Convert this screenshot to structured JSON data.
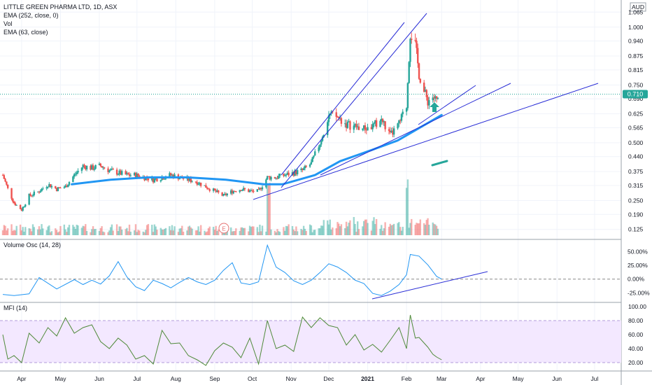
{
  "header": {
    "symbol_title": "LITTLE GREEN PHARMA LTD, 1D, ASX",
    "indicators": [
      "EMA (252, close, 0)",
      "Vol",
      "EMA (63, close)"
    ],
    "currency": "AUD",
    "last_price": "0.710"
  },
  "colors": {
    "up": "#26a69a",
    "down": "#ef5350",
    "ema": "#2196f3",
    "trendline": "#2a2ed6",
    "price_tag": "#26a69a",
    "mfi_line": "#4f8a3a",
    "mfi_band": "#f3e8ff",
    "osc_line": "#2196f3",
    "arrow": "#26a69a"
  },
  "earnings_marker": "E",
  "panes": {
    "volume_osc": {
      "title": "Volume Osc (14, 28)",
      "ticks": [
        "50.00%",
        "25.00%",
        "0.00%",
        "-25.00%"
      ]
    },
    "mfi": {
      "title": "MFI (14)",
      "ticks": [
        "100.00",
        "80.00",
        "60.00",
        "40.00",
        "20.00"
      ]
    }
  },
  "time_axis": [
    "Apr",
    "May",
    "Jun",
    "Jul",
    "Aug",
    "Sep",
    "Oct",
    "Nov",
    "Dec",
    "2021",
    "Feb",
    "Mar",
    "Apr",
    "May",
    "Jun",
    "Jul"
  ],
  "chart_data": {
    "type": "candlestick",
    "price_axis": [
      "1.065",
      "1.000",
      "0.940",
      "0.875",
      "0.815",
      "0.750",
      "0.690",
      "0.625",
      "0.565",
      "0.500",
      "0.440",
      "0.375",
      "0.315",
      "0.250",
      "0.190",
      "0.125"
    ],
    "ylim": [
      0.1,
      1.075
    ],
    "x_range": [
      "2020-03-16",
      "2021-07-20"
    ],
    "close_series": [
      [
        "2020-03-16",
        0.36
      ],
      [
        "2020-03-20",
        0.3
      ],
      [
        "2020-03-25",
        0.24
      ],
      [
        "2020-03-31",
        0.21
      ],
      [
        "2020-04-06",
        0.27
      ],
      [
        "2020-04-14",
        0.29
      ],
      [
        "2020-04-21",
        0.32
      ],
      [
        "2020-04-28",
        0.3
      ],
      [
        "2020-05-05",
        0.31
      ],
      [
        "2020-05-12",
        0.36
      ],
      [
        "2020-05-19",
        0.4
      ],
      [
        "2020-05-26",
        0.39
      ],
      [
        "2020-06-02",
        0.4
      ],
      [
        "2020-06-09",
        0.38
      ],
      [
        "2020-06-16",
        0.37
      ],
      [
        "2020-06-23",
        0.36
      ],
      [
        "2020-06-30",
        0.36
      ],
      [
        "2020-07-07",
        0.35
      ],
      [
        "2020-07-14",
        0.34
      ],
      [
        "2020-07-21",
        0.35
      ],
      [
        "2020-07-28",
        0.36
      ],
      [
        "2020-08-04",
        0.35
      ],
      [
        "2020-08-11",
        0.34
      ],
      [
        "2020-08-18",
        0.33
      ],
      [
        "2020-08-25",
        0.31
      ],
      [
        "2020-09-01",
        0.29
      ],
      [
        "2020-09-08",
        0.27
      ],
      [
        "2020-09-15",
        0.29
      ],
      [
        "2020-09-22",
        0.3
      ],
      [
        "2020-09-29",
        0.29
      ],
      [
        "2020-10-06",
        0.29
      ],
      [
        "2020-10-13",
        0.35
      ],
      [
        "2020-10-20",
        0.35
      ],
      [
        "2020-10-27",
        0.36
      ],
      [
        "2020-11-03",
        0.37
      ],
      [
        "2020-11-10",
        0.38
      ],
      [
        "2020-11-17",
        0.41
      ],
      [
        "2020-11-24",
        0.5
      ],
      [
        "2020-12-01",
        0.62
      ],
      [
        "2020-12-08",
        0.61
      ],
      [
        "2020-12-15",
        0.58
      ],
      [
        "2020-12-22",
        0.57
      ],
      [
        "2020-12-29",
        0.56
      ],
      [
        "2021-01-05",
        0.57
      ],
      [
        "2021-01-12",
        0.6
      ],
      [
        "2021-01-19",
        0.53
      ],
      [
        "2021-01-26",
        0.58
      ],
      [
        "2021-02-01",
        0.66
      ],
      [
        "2021-02-04",
        0.98
      ],
      [
        "2021-02-08",
        0.92
      ],
      [
        "2021-02-11",
        0.8
      ],
      [
        "2021-02-15",
        0.72
      ],
      [
        "2021-02-18",
        0.68
      ],
      [
        "2021-02-22",
        0.7
      ],
      [
        "2021-02-25",
        0.68
      ],
      [
        "2021-03-01",
        0.71
      ]
    ],
    "ema_252": [
      [
        "2020-05-10",
        0.32
      ],
      [
        "2020-06-10",
        0.34
      ],
      [
        "2020-07-10",
        0.35
      ],
      [
        "2020-08-10",
        0.35
      ],
      [
        "2020-09-10",
        0.34
      ],
      [
        "2020-10-10",
        0.32
      ],
      [
        "2020-10-25",
        0.32
      ],
      [
        "2020-11-20",
        0.36
      ],
      [
        "2020-12-10",
        0.42
      ],
      [
        "2021-01-05",
        0.47
      ],
      [
        "2021-01-25",
        0.51
      ],
      [
        "2021-02-10",
        0.56
      ],
      [
        "2021-03-01",
        0.62
      ]
    ],
    "volume_osc": [
      [
        "2020-03-16",
        -28
      ],
      [
        "2020-03-25",
        -30
      ],
      [
        "2020-04-06",
        -27
      ],
      [
        "2020-04-14",
        3
      ],
      [
        "2020-04-28",
        -18
      ],
      [
        "2020-05-12",
        -1
      ],
      [
        "2020-05-19",
        -10
      ],
      [
        "2020-05-26",
        -2
      ],
      [
        "2020-06-02",
        -9
      ],
      [
        "2020-06-09",
        6
      ],
      [
        "2020-06-16",
        32
      ],
      [
        "2020-06-23",
        4
      ],
      [
        "2020-06-30",
        -14
      ],
      [
        "2020-07-07",
        -21
      ],
      [
        "2020-07-14",
        -2
      ],
      [
        "2020-07-21",
        -8
      ],
      [
        "2020-07-28",
        -16
      ],
      [
        "2020-08-04",
        -6
      ],
      [
        "2020-08-11",
        3
      ],
      [
        "2020-08-18",
        -5
      ],
      [
        "2020-08-25",
        -10
      ],
      [
        "2020-09-01",
        -2
      ],
      [
        "2020-09-08",
        16
      ],
      [
        "2020-09-15",
        30
      ],
      [
        "2020-09-22",
        -7
      ],
      [
        "2020-09-29",
        -10
      ],
      [
        "2020-10-06",
        -5
      ],
      [
        "2020-10-13",
        62
      ],
      [
        "2020-10-20",
        22
      ],
      [
        "2020-10-27",
        12
      ],
      [
        "2020-11-03",
        -3
      ],
      [
        "2020-11-10",
        -10
      ],
      [
        "2020-11-17",
        -2
      ],
      [
        "2020-11-24",
        12
      ],
      [
        "2020-12-01",
        28
      ],
      [
        "2020-12-08",
        22
      ],
      [
        "2020-12-15",
        12
      ],
      [
        "2020-12-22",
        -2
      ],
      [
        "2020-12-29",
        -8
      ],
      [
        "2021-01-05",
        -26
      ],
      [
        "2021-01-12",
        -30
      ],
      [
        "2021-01-19",
        -22
      ],
      [
        "2021-01-26",
        -10
      ],
      [
        "2021-02-01",
        8
      ],
      [
        "2021-02-04",
        45
      ],
      [
        "2021-02-11",
        42
      ],
      [
        "2021-02-18",
        26
      ],
      [
        "2021-02-25",
        5
      ],
      [
        "2021-03-01",
        0
      ]
    ],
    "mfi": [
      [
        "2020-03-16",
        60
      ],
      [
        "2020-03-20",
        25
      ],
      [
        "2020-03-25",
        30
      ],
      [
        "2020-03-31",
        20
      ],
      [
        "2020-04-06",
        62
      ],
      [
        "2020-04-14",
        48
      ],
      [
        "2020-04-21",
        70
      ],
      [
        "2020-04-28",
        58
      ],
      [
        "2020-05-05",
        84
      ],
      [
        "2020-05-12",
        62
      ],
      [
        "2020-05-19",
        70
      ],
      [
        "2020-05-26",
        74
      ],
      [
        "2020-06-02",
        50
      ],
      [
        "2020-06-09",
        40
      ],
      [
        "2020-06-16",
        55
      ],
      [
        "2020-06-23",
        45
      ],
      [
        "2020-06-30",
        25
      ],
      [
        "2020-07-07",
        30
      ],
      [
        "2020-07-14",
        18
      ],
      [
        "2020-07-21",
        66
      ],
      [
        "2020-07-28",
        47
      ],
      [
        "2020-08-04",
        48
      ],
      [
        "2020-08-11",
        30
      ],
      [
        "2020-08-18",
        24
      ],
      [
        "2020-08-25",
        16
      ],
      [
        "2020-09-01",
        37
      ],
      [
        "2020-09-08",
        48
      ],
      [
        "2020-09-15",
        42
      ],
      [
        "2020-09-22",
        27
      ],
      [
        "2020-09-29",
        55
      ],
      [
        "2020-10-06",
        18
      ],
      [
        "2020-10-13",
        80
      ],
      [
        "2020-10-20",
        40
      ],
      [
        "2020-10-27",
        45
      ],
      [
        "2020-11-03",
        36
      ],
      [
        "2020-11-10",
        85
      ],
      [
        "2020-11-17",
        70
      ],
      [
        "2020-11-24",
        84
      ],
      [
        "2020-12-01",
        73
      ],
      [
        "2020-12-08",
        70
      ],
      [
        "2020-12-15",
        45
      ],
      [
        "2020-12-22",
        60
      ],
      [
        "2020-12-29",
        38
      ],
      [
        "2021-01-05",
        46
      ],
      [
        "2021-01-12",
        35
      ],
      [
        "2021-01-19",
        52
      ],
      [
        "2021-01-26",
        70
      ],
      [
        "2021-02-01",
        40
      ],
      [
        "2021-02-04",
        88
      ],
      [
        "2021-02-08",
        55
      ],
      [
        "2021-02-11",
        56
      ],
      [
        "2021-02-15",
        48
      ],
      [
        "2021-02-18",
        42
      ],
      [
        "2021-02-22",
        32
      ],
      [
        "2021-02-25",
        28
      ],
      [
        "2021-03-01",
        24
      ]
    ]
  }
}
